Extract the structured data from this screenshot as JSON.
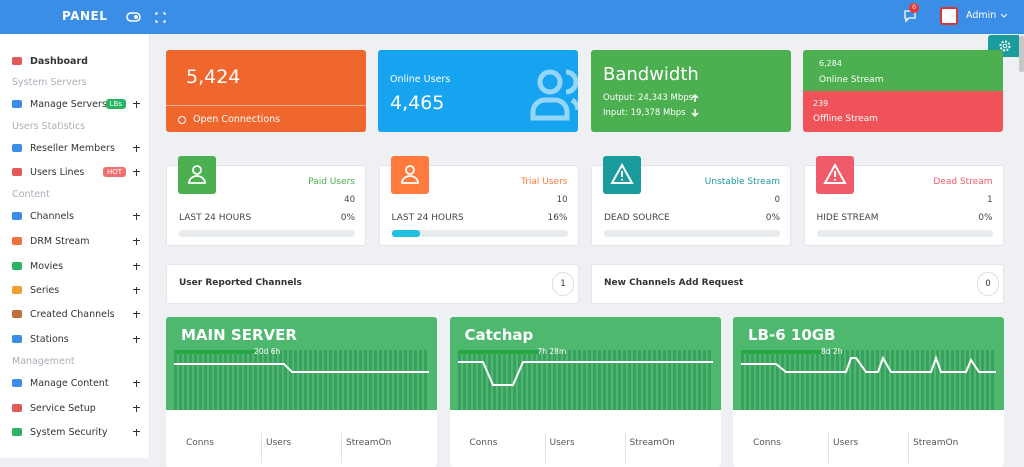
{
  "header": {
    "brand": "PANEL",
    "notifications": "0",
    "user": "Admin"
  },
  "sidebar": {
    "items": [
      {
        "label": "Dashboard",
        "icon": "#e05a5a",
        "active": true
      },
      {
        "section": "System Servers"
      },
      {
        "label": "Manage Servers",
        "icon": "#3a8ee6",
        "badge": "LBs",
        "badge_color": "#28b463",
        "plus": true
      },
      {
        "section": "Users Statistics"
      },
      {
        "label": "Reseller Members",
        "icon": "#3a8ee6",
        "plus": true
      },
      {
        "label": "Users Lines",
        "icon": "#e05a5a",
        "badge": "HOT",
        "badge_color": "#f07070",
        "plus": true
      },
      {
        "section": "Content"
      },
      {
        "label": "Channels",
        "icon": "#3a8ee6",
        "plus": true
      },
      {
        "label": "DRM Stream",
        "icon": "#f07040",
        "plus": true
      },
      {
        "label": "Movies",
        "icon": "#28b463",
        "plus": true
      },
      {
        "label": "Series",
        "icon": "#f0a030",
        "plus": true
      },
      {
        "label": "Created Channels",
        "icon": "#c07040",
        "plus": true
      },
      {
        "label": "Stations",
        "icon": "#3a8ee6",
        "plus": true
      },
      {
        "section": "Management"
      },
      {
        "label": "Manage Content",
        "icon": "#3a8ee6",
        "plus": true
      },
      {
        "label": "Service Setup",
        "icon": "#e05a5a",
        "plus": true
      },
      {
        "label": "System Security",
        "icon": "#28b463",
        "plus": true
      }
    ]
  },
  "top_cards": {
    "connections": {
      "value": "5,424",
      "label": "Open Connections"
    },
    "online_users": {
      "label": "Online Users",
      "value": "4,465"
    },
    "bandwidth": {
      "title": "Bandwidth",
      "output": "Output: 24,343 Mbps",
      "input": "Input: 19,378 Mbps"
    },
    "streams": {
      "online_value": "6,284",
      "online_label": "Online Stream",
      "offline_value": "239",
      "offline_label": "Offline Stream"
    }
  },
  "stat_cards": [
    {
      "title": "Paid Users",
      "count": 40,
      "period": "LAST 24 HOURS",
      "percent": {
        "value": 0,
        "label": "0%"
      },
      "color": "#4caf50"
    },
    {
      "title": "Trial Users",
      "count": 10,
      "period": "LAST 24 HOURS",
      "percent": {
        "value": 16,
        "label": "16%"
      },
      "color": "#ff7a3d"
    },
    {
      "title": "Unstable Stream",
      "count": 0,
      "period": "DEAD SOURCE",
      "percent": {
        "value": 0,
        "label": "0%"
      },
      "color": "#1a9c9c"
    },
    {
      "title": "Dead Stream",
      "count": 1,
      "period": "HIDE STREAM",
      "percent": {
        "value": 0,
        "label": "0%"
      },
      "color": "#f05a6a"
    }
  ],
  "requests": [
    {
      "label": "User Reported Channels",
      "count": 1
    },
    {
      "label": "New Channels Add Request",
      "count": 0
    }
  ],
  "servers": [
    {
      "name": "MAIN SERVER",
      "uptime": "20d 6h",
      "columns": [
        "Conns",
        "Users",
        "StreamOn"
      ]
    },
    {
      "name": "Catchap",
      "uptime": "7h 28m",
      "columns": [
        "Conns",
        "Users",
        "StreamOn"
      ]
    },
    {
      "name": "LB-6 10GB",
      "uptime": "8d 2h",
      "columns": [
        "Conns",
        "Users",
        "StreamOn"
      ]
    }
  ]
}
